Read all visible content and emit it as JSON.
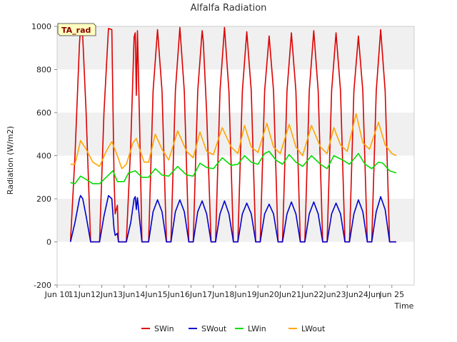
{
  "chart_data": {
    "type": "line",
    "title": "Alfalfa Radiation",
    "xlabel": "Time",
    "ylabel": "Radiation (W/m2)",
    "tag": "TA_rad",
    "ylim": [
      -200,
      1000
    ],
    "yticks": [
      -200,
      0,
      200,
      400,
      600,
      800,
      1000
    ],
    "xlim": [
      9.0,
      25.0
    ],
    "xticks": [
      {
        "v": 9,
        "label": "Jun 10"
      },
      {
        "v": 10,
        "label": "11Jun"
      },
      {
        "v": 11,
        "label": "12Jun"
      },
      {
        "v": 12,
        "label": "13Jun"
      },
      {
        "v": 13,
        "label": "14Jun"
      },
      {
        "v": 14,
        "label": "15Jun"
      },
      {
        "v": 15,
        "label": "16Jun"
      },
      {
        "v": 16,
        "label": "17Jun"
      },
      {
        "v": 17,
        "label": "18Jun"
      },
      {
        "v": 18,
        "label": "19Jun"
      },
      {
        "v": 19,
        "label": "20Jun"
      },
      {
        "v": 20,
        "label": "21Jun"
      },
      {
        "v": 21,
        "label": "22Jun"
      },
      {
        "v": 22,
        "label": "23Jun"
      },
      {
        "v": 23,
        "label": "24Jun"
      },
      {
        "v": 24,
        "label": "Jun 25"
      }
    ],
    "x_units": "days since Jun 1",
    "grid": "horizontal bands",
    "legend_position": "bottom",
    "series": [
      {
        "name": "SWin",
        "color": "#dd0000",
        "points": [
          [
            9.6,
            0
          ],
          [
            9.8,
            400
          ],
          [
            10.0,
            920
          ],
          [
            10.05,
            995
          ],
          [
            10.15,
            950
          ],
          [
            10.3,
            600
          ],
          [
            10.5,
            0
          ],
          [
            10.9,
            0
          ],
          [
            11.1,
            600
          ],
          [
            11.3,
            990
          ],
          [
            11.45,
            985
          ],
          [
            11.55,
            300
          ],
          [
            11.6,
            130
          ],
          [
            11.7,
            170
          ],
          [
            11.75,
            0
          ],
          [
            12.1,
            0
          ],
          [
            12.3,
            450
          ],
          [
            12.45,
            950
          ],
          [
            12.5,
            970
          ],
          [
            12.55,
            680
          ],
          [
            12.6,
            980
          ],
          [
            12.7,
            530
          ],
          [
            12.8,
            0
          ],
          [
            13.1,
            0
          ],
          [
            13.3,
            700
          ],
          [
            13.5,
            985
          ],
          [
            13.7,
            700
          ],
          [
            13.9,
            0
          ],
          [
            14.1,
            0
          ],
          [
            14.3,
            700
          ],
          [
            14.5,
            995
          ],
          [
            14.7,
            700
          ],
          [
            14.9,
            0
          ],
          [
            15.1,
            0
          ],
          [
            15.3,
            700
          ],
          [
            15.5,
            980
          ],
          [
            15.55,
            930
          ],
          [
            15.7,
            600
          ],
          [
            15.9,
            0
          ],
          [
            16.1,
            0
          ],
          [
            16.3,
            700
          ],
          [
            16.5,
            995
          ],
          [
            16.7,
            700
          ],
          [
            16.9,
            0
          ],
          [
            17.1,
            0
          ],
          [
            17.3,
            700
          ],
          [
            17.5,
            975
          ],
          [
            17.7,
            700
          ],
          [
            17.9,
            0
          ],
          [
            18.1,
            0
          ],
          [
            18.3,
            700
          ],
          [
            18.5,
            955
          ],
          [
            18.7,
            700
          ],
          [
            18.9,
            0
          ],
          [
            19.1,
            0
          ],
          [
            19.3,
            700
          ],
          [
            19.5,
            970
          ],
          [
            19.7,
            700
          ],
          [
            19.9,
            0
          ],
          [
            20.1,
            0
          ],
          [
            20.3,
            700
          ],
          [
            20.5,
            980
          ],
          [
            20.7,
            700
          ],
          [
            20.9,
            0
          ],
          [
            21.1,
            0
          ],
          [
            21.3,
            700
          ],
          [
            21.5,
            970
          ],
          [
            21.7,
            700
          ],
          [
            21.9,
            0
          ],
          [
            22.1,
            0
          ],
          [
            22.3,
            700
          ],
          [
            22.5,
            955
          ],
          [
            22.7,
            700
          ],
          [
            22.9,
            0
          ],
          [
            23.1,
            0
          ],
          [
            23.3,
            700
          ],
          [
            23.5,
            985
          ],
          [
            23.7,
            700
          ],
          [
            23.9,
            0
          ],
          [
            24.2,
            0
          ]
        ]
      },
      {
        "name": "SWout",
        "color": "#0000cc",
        "points": [
          [
            9.6,
            0
          ],
          [
            9.8,
            90
          ],
          [
            10.0,
            200
          ],
          [
            10.05,
            215
          ],
          [
            10.15,
            200
          ],
          [
            10.3,
            120
          ],
          [
            10.5,
            0
          ],
          [
            10.9,
            0
          ],
          [
            11.1,
            120
          ],
          [
            11.3,
            215
          ],
          [
            11.45,
            200
          ],
          [
            11.55,
            60
          ],
          [
            11.6,
            30
          ],
          [
            11.7,
            40
          ],
          [
            11.75,
            0
          ],
          [
            12.1,
            0
          ],
          [
            12.3,
            90
          ],
          [
            12.45,
            200
          ],
          [
            12.5,
            210
          ],
          [
            12.55,
            150
          ],
          [
            12.6,
            205
          ],
          [
            12.7,
            100
          ],
          [
            12.8,
            0
          ],
          [
            13.1,
            0
          ],
          [
            13.3,
            140
          ],
          [
            13.5,
            195
          ],
          [
            13.7,
            140
          ],
          [
            13.9,
            0
          ],
          [
            14.1,
            0
          ],
          [
            14.3,
            140
          ],
          [
            14.5,
            195
          ],
          [
            14.7,
            140
          ],
          [
            14.9,
            0
          ],
          [
            15.1,
            0
          ],
          [
            15.3,
            140
          ],
          [
            15.5,
            190
          ],
          [
            15.7,
            130
          ],
          [
            15.9,
            0
          ],
          [
            16.1,
            0
          ],
          [
            16.3,
            130
          ],
          [
            16.5,
            190
          ],
          [
            16.7,
            130
          ],
          [
            16.9,
            0
          ],
          [
            17.1,
            0
          ],
          [
            17.3,
            130
          ],
          [
            17.5,
            180
          ],
          [
            17.7,
            130
          ],
          [
            17.9,
            0
          ],
          [
            18.1,
            0
          ],
          [
            18.3,
            130
          ],
          [
            18.5,
            175
          ],
          [
            18.7,
            130
          ],
          [
            18.9,
            0
          ],
          [
            19.1,
            0
          ],
          [
            19.3,
            130
          ],
          [
            19.5,
            185
          ],
          [
            19.7,
            130
          ],
          [
            19.9,
            0
          ],
          [
            20.1,
            0
          ],
          [
            20.3,
            130
          ],
          [
            20.5,
            185
          ],
          [
            20.7,
            130
          ],
          [
            20.9,
            0
          ],
          [
            21.1,
            0
          ],
          [
            21.3,
            130
          ],
          [
            21.5,
            180
          ],
          [
            21.7,
            130
          ],
          [
            21.9,
            0
          ],
          [
            22.1,
            0
          ],
          [
            22.3,
            130
          ],
          [
            22.5,
            195
          ],
          [
            22.7,
            140
          ],
          [
            22.9,
            0
          ],
          [
            23.1,
            0
          ],
          [
            23.3,
            140
          ],
          [
            23.5,
            210
          ],
          [
            23.7,
            150
          ],
          [
            23.9,
            0
          ],
          [
            24.2,
            0
          ]
        ]
      },
      {
        "name": "LWin",
        "color": "#00dd00",
        "points": [
          [
            9.6,
            275
          ],
          [
            9.8,
            270
          ],
          [
            10.05,
            305
          ],
          [
            10.3,
            290
          ],
          [
            10.6,
            270
          ],
          [
            10.9,
            270
          ],
          [
            11.2,
            300
          ],
          [
            11.5,
            330
          ],
          [
            11.7,
            280
          ],
          [
            12.0,
            280
          ],
          [
            12.2,
            320
          ],
          [
            12.5,
            330
          ],
          [
            12.8,
            300
          ],
          [
            13.1,
            300
          ],
          [
            13.4,
            340
          ],
          [
            13.7,
            310
          ],
          [
            14.0,
            305
          ],
          [
            14.4,
            350
          ],
          [
            14.8,
            310
          ],
          [
            15.1,
            305
          ],
          [
            15.4,
            365
          ],
          [
            15.7,
            345
          ],
          [
            16.0,
            340
          ],
          [
            16.4,
            390
          ],
          [
            16.8,
            355
          ],
          [
            17.1,
            360
          ],
          [
            17.4,
            400
          ],
          [
            17.7,
            370
          ],
          [
            18.0,
            360
          ],
          [
            18.3,
            410
          ],
          [
            18.5,
            420
          ],
          [
            18.8,
            380
          ],
          [
            19.1,
            360
          ],
          [
            19.4,
            405
          ],
          [
            19.7,
            370
          ],
          [
            20.0,
            350
          ],
          [
            20.4,
            400
          ],
          [
            20.8,
            360
          ],
          [
            21.1,
            340
          ],
          [
            21.4,
            400
          ],
          [
            21.8,
            380
          ],
          [
            22.1,
            360
          ],
          [
            22.5,
            410
          ],
          [
            22.8,
            360
          ],
          [
            23.1,
            340
          ],
          [
            23.4,
            370
          ],
          [
            23.6,
            365
          ],
          [
            23.9,
            330
          ],
          [
            24.2,
            320
          ]
        ]
      },
      {
        "name": "LWout",
        "color": "#ffa500",
        "points": [
          [
            9.6,
            360
          ],
          [
            9.8,
            360
          ],
          [
            10.05,
            470
          ],
          [
            10.3,
            430
          ],
          [
            10.6,
            370
          ],
          [
            10.9,
            350
          ],
          [
            11.2,
            420
          ],
          [
            11.45,
            465
          ],
          [
            11.7,
            400
          ],
          [
            11.9,
            340
          ],
          [
            12.1,
            360
          ],
          [
            12.4,
            460
          ],
          [
            12.55,
            480
          ],
          [
            12.7,
            430
          ],
          [
            12.9,
            370
          ],
          [
            13.1,
            370
          ],
          [
            13.4,
            500
          ],
          [
            13.7,
            430
          ],
          [
            14.0,
            380
          ],
          [
            14.4,
            515
          ],
          [
            14.8,
            420
          ],
          [
            15.1,
            390
          ],
          [
            15.4,
            510
          ],
          [
            15.7,
            420
          ],
          [
            16.0,
            405
          ],
          [
            16.4,
            530
          ],
          [
            16.8,
            440
          ],
          [
            17.1,
            410
          ],
          [
            17.4,
            540
          ],
          [
            17.7,
            440
          ],
          [
            18.0,
            415
          ],
          [
            18.4,
            550
          ],
          [
            18.7,
            440
          ],
          [
            19.0,
            410
          ],
          [
            19.4,
            545
          ],
          [
            19.7,
            440
          ],
          [
            20.0,
            400
          ],
          [
            20.4,
            540
          ],
          [
            20.8,
            440
          ],
          [
            21.1,
            410
          ],
          [
            21.4,
            530
          ],
          [
            21.7,
            450
          ],
          [
            22.0,
            420
          ],
          [
            22.4,
            595
          ],
          [
            22.7,
            460
          ],
          [
            23.0,
            430
          ],
          [
            23.4,
            555
          ],
          [
            23.7,
            450
          ],
          [
            24.0,
            410
          ],
          [
            24.2,
            400
          ]
        ]
      }
    ]
  }
}
